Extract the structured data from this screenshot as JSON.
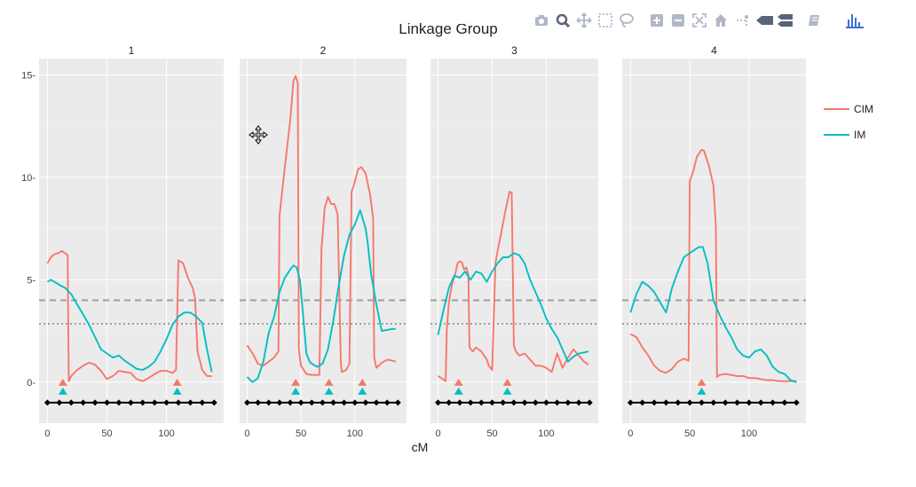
{
  "chart_data": {
    "type": "line",
    "title": "Linkage Group",
    "xlabel": "cM",
    "ylabel": "",
    "ylim": [
      -2,
      15.8
    ],
    "yticks": [
      0,
      5,
      10,
      15
    ],
    "ytick_labels": [
      "0-",
      "5-",
      "10-",
      "15-"
    ],
    "xticks": [
      0,
      50,
      100
    ],
    "thresholds": [
      {
        "name": "dashed",
        "value": 4.0,
        "style": "dashed"
      },
      {
        "name": "dotted",
        "value": 2.85,
        "style": "dotted"
      }
    ],
    "colors": {
      "CIM": "#f8766d",
      "IM": "#00bfc4",
      "markers": "#000000",
      "threshold": "#9e9e9e",
      "panel_bg": "#ebebeb",
      "strip_bg": "#ffffff"
    },
    "legend": {
      "position": "right",
      "entries": [
        "CIM",
        "IM"
      ]
    },
    "panels": [
      {
        "label": "1",
        "xlim": [
          -7,
          148
        ],
        "series": [
          {
            "name": "CIM",
            "x": [
              0,
              3,
              6,
              9,
              12,
              15,
              17,
              18,
              20,
              25,
              30,
              35,
              40,
              45,
              50,
              55,
              60,
              65,
              70,
              75,
              80,
              85,
              90,
              95,
              100,
              105,
              108,
              110,
              114,
              118,
              122,
              124,
              126,
              130,
              134,
              138
            ],
            "y": [
              5.8,
              6.1,
              6.25,
              6.3,
              6.4,
              6.3,
              6.2,
              0.05,
              0.3,
              0.6,
              0.8,
              0.95,
              0.85,
              0.55,
              0.15,
              0.3,
              0.55,
              0.5,
              0.45,
              0.15,
              0.05,
              0.2,
              0.4,
              0.55,
              0.55,
              0.45,
              0.6,
              5.95,
              5.8,
              5.1,
              4.6,
              4.1,
              1.5,
              0.6,
              0.3,
              0.3
            ]
          },
          {
            "name": "IM",
            "x": [
              0,
              3,
              6,
              10,
              15,
              20,
              25,
              30,
              35,
              40,
              45,
              50,
              55,
              60,
              65,
              70,
              75,
              80,
              85,
              90,
              95,
              100,
              105,
              110,
              115,
              120,
              125,
              130,
              134,
              138
            ],
            "y": [
              4.9,
              5.0,
              4.9,
              4.75,
              4.6,
              4.3,
              3.8,
              3.3,
              2.8,
              2.2,
              1.6,
              1.4,
              1.2,
              1.3,
              1.05,
              0.85,
              0.65,
              0.6,
              0.75,
              1.0,
              1.5,
              2.1,
              2.8,
              3.2,
              3.4,
              3.4,
              3.2,
              2.9,
              1.6,
              0.5
            ]
          }
        ],
        "peaks": {
          "CIM": [
            13,
            109
          ],
          "IM": [
            13,
            109
          ]
        },
        "markers": [
          0,
          10,
          20,
          30,
          40,
          50,
          60,
          70,
          80,
          90,
          100,
          110,
          120,
          130,
          140
        ]
      },
      {
        "label": "2",
        "xlim": [
          -7,
          148
        ],
        "series": [
          {
            "name": "CIM",
            "x": [
              0,
              5,
              10,
              15,
              20,
              25,
              29,
              30,
              35,
              40,
              43,
              45,
              47,
              48,
              50,
              55,
              60,
              67,
              69,
              72,
              75,
              78,
              81,
              84,
              87,
              88,
              92,
              95,
              97,
              99,
              103,
              106,
              110,
              114,
              117,
              118,
              120,
              125,
              130,
              135,
              138
            ],
            "y": [
              1.8,
              1.4,
              0.9,
              0.8,
              1.0,
              1.2,
              1.5,
              8.1,
              10.5,
              12.8,
              14.7,
              14.95,
              14.6,
              1.6,
              0.8,
              0.4,
              0.35,
              0.35,
              6.5,
              8.5,
              9.05,
              8.7,
              8.7,
              8.2,
              0.9,
              0.5,
              0.6,
              0.9,
              9.3,
              9.6,
              10.4,
              10.5,
              10.2,
              9.2,
              8.0,
              1.2,
              0.7,
              0.95,
              1.1,
              1.05,
              1.0
            ]
          },
          {
            "name": "IM",
            "x": [
              0,
              5,
              10,
              15,
              20,
              25,
              30,
              35,
              40,
              43,
              46,
              49,
              52,
              55,
              58,
              60,
              65,
              70,
              75,
              80,
              85,
              90,
              95,
              100,
              105,
              110,
              112,
              115,
              120,
              125,
              130,
              135,
              138
            ],
            "y": [
              0.25,
              0.0,
              0.2,
              1.0,
              2.4,
              3.2,
              4.4,
              5.1,
              5.5,
              5.7,
              5.6,
              5.0,
              3.2,
              1.4,
              1.0,
              0.9,
              0.75,
              0.9,
              1.6,
              3.0,
              4.7,
              6.2,
              7.2,
              7.7,
              8.4,
              7.5,
              6.8,
              5.3,
              3.8,
              2.5,
              2.55,
              2.6,
              2.6
            ]
          },
          {
            "name": "",
            "x": [],
            "y": []
          }
        ],
        "peaks": {
          "CIM": [
            45,
            76,
            107
          ],
          "IM": [
            45,
            76,
            107
          ]
        },
        "markers": [
          0,
          10,
          20,
          30,
          40,
          50,
          60,
          70,
          80,
          90,
          100,
          110,
          120,
          130,
          140
        ]
      },
      {
        "label": "3",
        "xlim": [
          -7,
          148
        ],
        "series": [
          {
            "name": "CIM",
            "x": [
              0,
              3,
              7,
              8,
              10,
              13,
              16,
              18,
              20,
              22,
              24,
              26,
              28,
              29,
              32,
              35,
              40,
              45,
              47,
              50,
              53,
              55,
              58,
              62,
              65,
              66,
              68,
              70,
              72,
              75,
              80,
              85,
              90,
              95,
              100,
              105,
              110,
              115,
              120,
              125,
              130,
              135,
              139
            ],
            "y": [
              0.3,
              0.2,
              0.05,
              2.5,
              3.9,
              4.8,
              5.3,
              5.8,
              5.9,
              5.85,
              5.5,
              5.6,
              5.25,
              1.7,
              1.5,
              1.7,
              1.5,
              1.1,
              0.8,
              0.6,
              5.8,
              6.4,
              7.2,
              8.3,
              9.05,
              9.3,
              9.25,
              1.8,
              1.5,
              1.3,
              1.4,
              1.1,
              0.8,
              0.8,
              0.7,
              0.5,
              1.4,
              0.7,
              1.2,
              1.6,
              1.3,
              1.0,
              0.85
            ]
          },
          {
            "name": "IM",
            "x": [
              0,
              5,
              10,
              15,
              20,
              25,
              30,
              35,
              40,
              45,
              50,
              55,
              60,
              65,
              70,
              75,
              80,
              85,
              90,
              95,
              100,
              105,
              110,
              115,
              120,
              125,
              130,
              135,
              139
            ],
            "y": [
              2.3,
              3.5,
              4.6,
              5.2,
              5.1,
              5.4,
              5.0,
              5.4,
              5.3,
              4.9,
              5.4,
              5.8,
              6.1,
              6.1,
              6.3,
              6.2,
              5.8,
              5.0,
              4.4,
              3.8,
              3.1,
              2.6,
              2.2,
              1.6,
              1.0,
              1.25,
              1.4,
              1.45,
              1.5
            ]
          }
        ],
        "peaks": {
          "CIM": [
            19,
            64
          ],
          "IM": [
            19,
            64
          ]
        },
        "markers": [
          0,
          10,
          20,
          30,
          40,
          50,
          60,
          70,
          80,
          90,
          100,
          110,
          120,
          130,
          140
        ]
      },
      {
        "label": "4",
        "xlim": [
          -7,
          148
        ],
        "series": [
          {
            "name": "CIM",
            "x": [
              0,
              5,
              10,
              15,
              20,
              25,
              30,
              35,
              40,
              45,
              49,
              50,
              53,
              56,
              60,
              62,
              66,
              70,
              72,
              73,
              75,
              80,
              85,
              90,
              95,
              100,
              105,
              110,
              115,
              120,
              125,
              130,
              135,
              140
            ],
            "y": [
              2.35,
              2.2,
              1.7,
              1.3,
              0.8,
              0.55,
              0.45,
              0.65,
              1.0,
              1.15,
              1.05,
              9.8,
              10.3,
              11.0,
              11.35,
              11.3,
              10.6,
              9.6,
              7.6,
              0.25,
              0.35,
              0.4,
              0.35,
              0.3,
              0.3,
              0.2,
              0.2,
              0.15,
              0.1,
              0.1,
              0.05,
              0.05,
              0.05,
              0.05
            ]
          },
          {
            "name": "IM",
            "x": [
              0,
              5,
              10,
              15,
              20,
              25,
              30,
              35,
              40,
              45,
              50,
              55,
              58,
              61,
              65,
              70,
              75,
              80,
              85,
              90,
              95,
              100,
              105,
              110,
              115,
              120,
              125,
              130,
              135,
              140
            ],
            "y": [
              3.4,
              4.3,
              4.9,
              4.7,
              4.4,
              3.9,
              3.4,
              4.6,
              5.4,
              6.1,
              6.3,
              6.5,
              6.6,
              6.6,
              5.8,
              4.0,
              3.3,
              2.7,
              2.2,
              1.6,
              1.3,
              1.2,
              1.5,
              1.6,
              1.3,
              0.75,
              0.5,
              0.4,
              0.1,
              0.0
            ]
          }
        ],
        "peaks": {
          "CIM": [
            60
          ],
          "IM": [
            60
          ]
        },
        "markers": [
          0,
          10,
          20,
          30,
          40,
          50,
          60,
          70,
          80,
          90,
          100,
          110,
          120,
          130,
          140
        ]
      }
    ]
  },
  "modebar": {
    "buttons": [
      {
        "name": "camera-icon",
        "title": "Download plot as a png"
      },
      {
        "name": "zoom-icon",
        "title": "Zoom"
      },
      {
        "name": "pan-icon",
        "title": "Pan"
      },
      {
        "name": "box-select-icon",
        "title": "Box Select"
      },
      {
        "name": "lasso-select-icon",
        "title": "Lasso Select"
      },
      {
        "name": "zoom-in-icon",
        "title": "Zoom in"
      },
      {
        "name": "zoom-out-icon",
        "title": "Zoom out"
      },
      {
        "name": "autoscale-icon",
        "title": "Autoscale"
      },
      {
        "name": "reset-axes-icon",
        "title": "Reset axes"
      },
      {
        "name": "spike-lines-icon",
        "title": "Toggle Spike Lines"
      },
      {
        "name": "hover-closest-icon",
        "title": "Show closest data on hover"
      },
      {
        "name": "hover-compare-icon",
        "title": "Compare data on hover"
      },
      {
        "name": "edit-in-chart-studio-icon",
        "title": "Edit in Chart Studio"
      },
      {
        "name": "plotly-logo-icon",
        "title": "Produced with Plotly"
      }
    ]
  }
}
